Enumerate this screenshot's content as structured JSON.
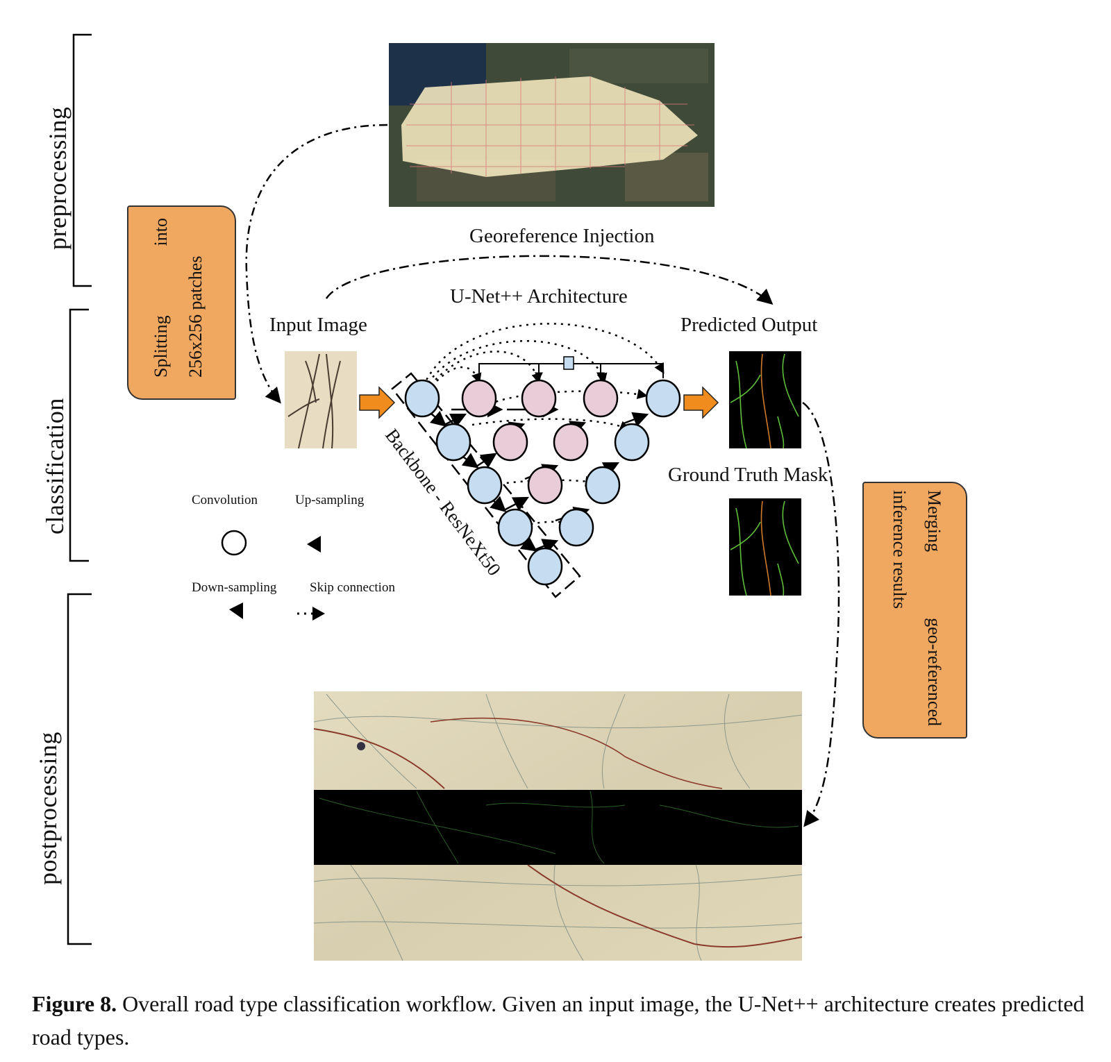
{
  "stages": {
    "preprocessing": "preprocessing",
    "classification": "classification",
    "postprocessing": "postprocessing"
  },
  "steps": {
    "splitting": {
      "line1_a": "Splitting",
      "line1_b": "into",
      "line2": "256x256 patches"
    },
    "merging": {
      "line1_a": "Merging",
      "line1_b": "geo-referenced",
      "line2": "inference results"
    }
  },
  "labels": {
    "georeference": "Georeference Injection",
    "unet": "U-Net++ Architecture",
    "input_image": "Input Image",
    "predicted_output": "Predicted Output",
    "ground_truth": "Ground Truth Mask",
    "backbone": "Backbone - ResNeXt50"
  },
  "legend": {
    "convolution": "Convolution",
    "upsampling": "Up-sampling",
    "downsampling": "Down-sampling",
    "skip": "Skip connection"
  },
  "caption": {
    "label": "Figure 8.",
    "text": " Overall road type classification workflow. Given an input image, the U-Net++ architecture creates predicted road types."
  },
  "colors": {
    "orange_box": "#f0a860",
    "arrow_orange": "#f08c1e",
    "encoder_node": "#c6dcf0",
    "nested_node": "#e8cdd8",
    "mask_background": "#000000"
  }
}
